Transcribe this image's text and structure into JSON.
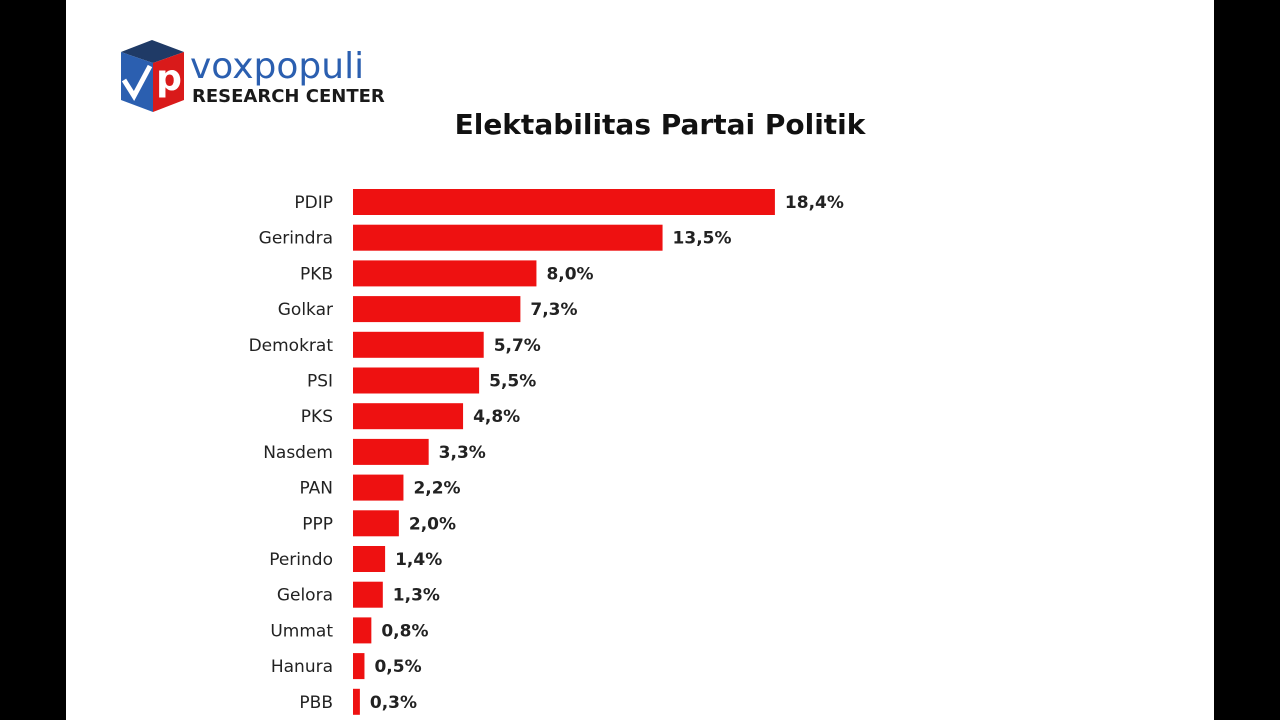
{
  "logo": {
    "icon_letter": "p",
    "brand": "voxpopuli",
    "tagline": "RESEARCH CENTER"
  },
  "chart_data": {
    "type": "bar",
    "orientation": "horizontal",
    "title": "Elektabilitas Partai Politik",
    "categories": [
      "PDIP",
      "Gerindra",
      "PKB",
      "Golkar",
      "Demokrat",
      "PSI",
      "PKS",
      "Nasdem",
      "PAN",
      "PPP",
      "Perindo",
      "Gelora",
      "Ummat",
      "Hanura",
      "PBB"
    ],
    "values": [
      18.4,
      13.5,
      8.0,
      7.3,
      5.7,
      5.5,
      4.8,
      3.3,
      2.2,
      2.0,
      1.4,
      1.3,
      0.8,
      0.5,
      0.3
    ],
    "value_labels": [
      "18,4%",
      "13,5%",
      "8,0%",
      "7,3%",
      "5,7%",
      "5,5%",
      "4,8%",
      "3,3%",
      "2,2%",
      "2,0%",
      "1,4%",
      "1,3%",
      "0,8%",
      "0,5%",
      "0,3%"
    ],
    "color": "#ee1111"
  }
}
